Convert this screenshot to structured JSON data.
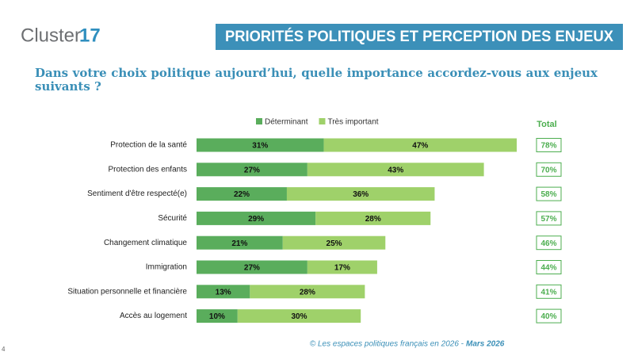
{
  "chart_data": {
    "type": "stacked_bar_horizontal",
    "logo": {
      "text": "Cluster",
      "number": "17"
    },
    "header": "PRIORITÉS POLITIQUES ET PERCEPTION DES ENJEUX",
    "title": "Dans votre choix politique aujourd’hui, quelle importance accordez-vous aux enjeux suivants ?",
    "categories": [
      "Protection de la santé",
      "Protection des enfants",
      "Sentiment d'être respecté(e)",
      "Sécurité",
      "Changement climatique",
      "Immigration",
      "Situation personnelle et financière",
      "Accès au logement"
    ],
    "series": [
      {
        "name": "Déterminant",
        "color": "#5aad5c",
        "values": [
          31,
          27,
          22,
          29,
          21,
          27,
          13,
          10
        ],
        "value_labels": [
          "31%",
          "27%",
          "22%",
          "29%",
          "21%",
          "27%",
          "13%",
          "10%"
        ]
      },
      {
        "name": "Très important",
        "color": "#9fd16a",
        "values": [
          47,
          43,
          36,
          28,
          25,
          17,
          28,
          30
        ],
        "value_labels": [
          "47%",
          "43%",
          "36%",
          "28%",
          "25%",
          "17%",
          "28%",
          "30%"
        ]
      }
    ],
    "totals": {
      "label": "Total",
      "color": "#4cae4f",
      "values": [
        78,
        70,
        58,
        57,
        46,
        44,
        41,
        40
      ],
      "value_labels": [
        "78%",
        "70%",
        "58%",
        "57%",
        "46%",
        "44%",
        "41%",
        "40%"
      ]
    },
    "footer": {
      "source": "© Les espaces politiques français en 2026 -",
      "date": "Mars 2026"
    },
    "page_number": "4"
  }
}
